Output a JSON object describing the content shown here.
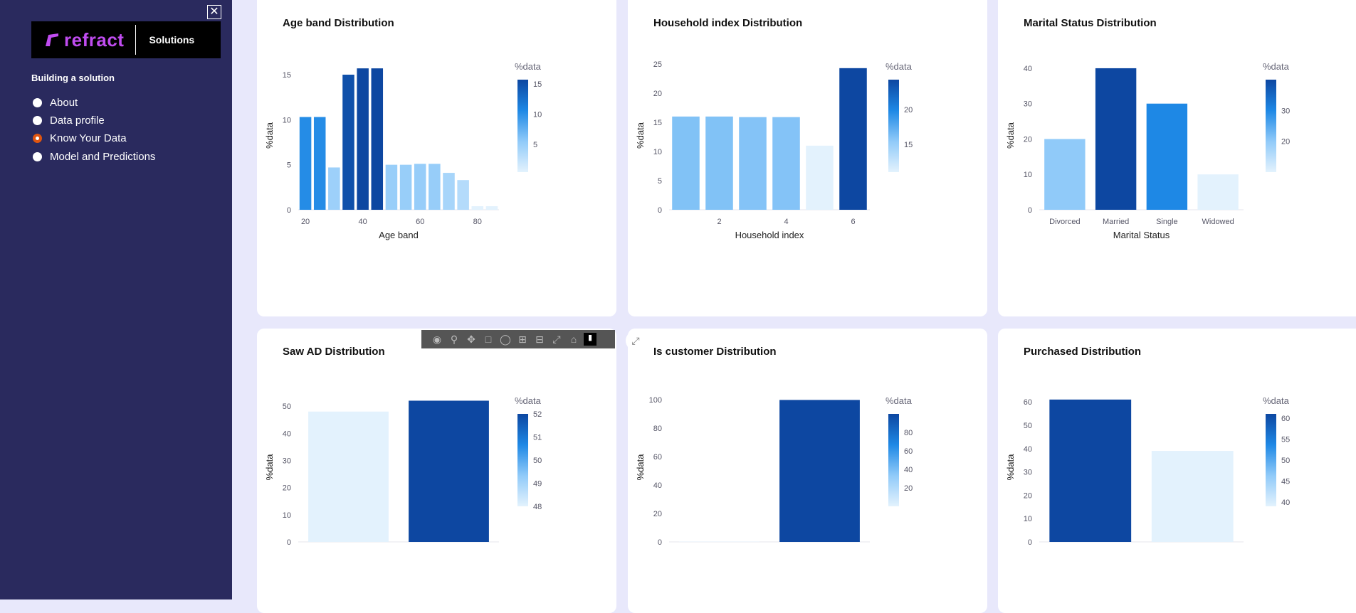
{
  "sidebar": {
    "logo_brand": "refract",
    "logo_section": "Solutions",
    "heading": "Building a solution",
    "items": [
      {
        "label": "About",
        "selected": false
      },
      {
        "label": "Data profile",
        "selected": false
      },
      {
        "label": "Know Your Data",
        "selected": true
      },
      {
        "label": "Model and Predictions",
        "selected": false
      }
    ]
  },
  "close_label": "✕",
  "colorbar_title": "%data",
  "y_title": "%data",
  "colors": {
    "sidebar_bg": "#2a2a5e",
    "page_bg": "#e8e8fb",
    "radio_selected": "#e0550f",
    "colorscale": [
      "#e3f2fd",
      "#90caf9",
      "#1e88e5",
      "#0d47a1"
    ]
  },
  "modebar_icons": [
    "camera-icon",
    "zoom-icon",
    "pan-icon",
    "box-select-icon",
    "lasso-icon",
    "zoom-in-icon",
    "zoom-out-icon",
    "autoscale-icon",
    "reset-axes-icon",
    "plotly-logo-icon"
  ],
  "charts": [
    {
      "title": "Age band Distribution",
      "chart_data": {
        "type": "bar",
        "title": "Age band Distribution",
        "xlabel": "Age band",
        "ylabel": "%data",
        "x": [
          20,
          25,
          30,
          35,
          40,
          45,
          50,
          55,
          60,
          65,
          70,
          75,
          80,
          85
        ],
        "values": [
          10.3,
          10.3,
          4.7,
          15.0,
          15.7,
          15.7,
          5.0,
          5.0,
          5.1,
          5.1,
          4.1,
          3.3,
          0.4,
          0.4
        ],
        "xlim": [
          17.5,
          87.5
        ],
        "ylim": [
          0,
          16.5
        ],
        "xticks": [
          20,
          40,
          60,
          80
        ],
        "yticks": [
          0,
          5,
          10,
          15
        ],
        "cmin": 0.4,
        "cmax": 15.7,
        "cticks": [
          5,
          10,
          15
        ]
      }
    },
    {
      "title": "Household index Distribution",
      "chart_data": {
        "type": "bar",
        "title": "Household index Distribution",
        "xlabel": "Household index",
        "ylabel": "%data",
        "x": [
          1,
          2,
          3,
          4,
          5,
          6
        ],
        "values": [
          16.0,
          16.0,
          15.9,
          15.9,
          11.0,
          24.3
        ],
        "xlim": [
          0.5,
          6.5
        ],
        "ylim": [
          0,
          25.5
        ],
        "xticks": [
          2,
          4,
          6
        ],
        "yticks": [
          0,
          5,
          10,
          15,
          20,
          25
        ],
        "cmin": 11.0,
        "cmax": 24.3,
        "cticks": [
          15,
          20
        ]
      }
    },
    {
      "title": "Marital Status Distribution",
      "chart_data": {
        "type": "bar",
        "title": "Marital Status Distribution",
        "xlabel": "Marital Status",
        "ylabel": "%data",
        "categories": [
          "Divorced",
          "Married",
          "Single",
          "Widowed"
        ],
        "values": [
          20,
          40,
          30,
          10
        ],
        "ylim": [
          0,
          42
        ],
        "yticks": [
          0,
          10,
          20,
          30,
          40
        ],
        "cmin": 10,
        "cmax": 40,
        "cticks": [
          20,
          30
        ]
      }
    },
    {
      "title": "Saw AD Distribution",
      "chart_data": {
        "type": "bar",
        "title": "Saw AD Distribution",
        "xlabel": "",
        "ylabel": "%data",
        "categories": [
          "",
          ""
        ],
        "values": [
          48,
          52
        ],
        "ylim": [
          0,
          55
        ],
        "yticks": [
          0,
          10,
          20,
          30,
          40,
          50
        ],
        "cmin": 48,
        "cmax": 52,
        "cticks": [
          48,
          49,
          50,
          51,
          52
        ]
      }
    },
    {
      "title": "Is customer Distribution",
      "chart_data": {
        "type": "bar",
        "title": "Is customer Distribution",
        "xlabel": "",
        "ylabel": "%data",
        "categories": [
          "",
          ""
        ],
        "values": [
          0.2,
          99.8
        ],
        "ylim": [
          0,
          105
        ],
        "yticks": [
          0,
          20,
          40,
          60,
          80,
          100
        ],
        "cmin": 0.2,
        "cmax": 99.8,
        "cticks": [
          20,
          40,
          60,
          80
        ]
      }
    },
    {
      "title": "Purchased Distribution",
      "chart_data": {
        "type": "bar",
        "title": "Purchased Distribution",
        "xlabel": "",
        "ylabel": "%data",
        "categories": [
          "",
          ""
        ],
        "values": [
          61,
          39
        ],
        "ylim": [
          0,
          64
        ],
        "yticks": [
          0,
          10,
          20,
          30,
          40,
          50,
          60
        ],
        "cmin": 39,
        "cmax": 61,
        "cticks": [
          40,
          45,
          50,
          55,
          60
        ]
      }
    }
  ]
}
